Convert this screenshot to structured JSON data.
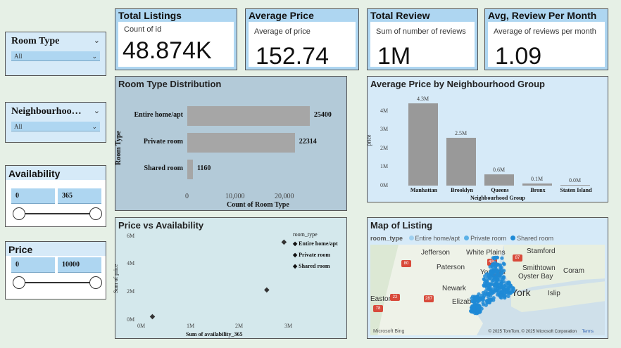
{
  "slicers": {
    "room_type": {
      "title": "Room Type",
      "value": "All"
    },
    "neighbourhood": {
      "title": "Neighbourhoo…",
      "value": "All"
    },
    "availability": {
      "title": "Availability",
      "min": "0",
      "max": "365"
    },
    "price": {
      "title": "Price",
      "min": "0",
      "max": "10000"
    }
  },
  "kpis": {
    "listings": {
      "title": "Total Listings",
      "sub": "Count of id",
      "value": "48.874K"
    },
    "avg_price": {
      "title": "Average Price",
      "sub": "Average of price",
      "value": "152.74"
    },
    "total_review": {
      "title": "Total Review",
      "sub": "Sum of number of reviews",
      "value": "1M"
    },
    "avg_review": {
      "title": "Avg, Review Per Month",
      "sub": "Average of reviews per month",
      "value": "1.09"
    }
  },
  "room_chart": {
    "title": "Room Type Distribution",
    "ylabel": "Room Type",
    "xlabel": "Count of Room Type",
    "ticks": [
      "0",
      "10,000",
      "20,000"
    ]
  },
  "nbhd_chart": {
    "title": "Average Price by Neighbourhood Group",
    "ylabel": "price",
    "xlabel": "Neighbourhood Group",
    "ticks": [
      "0M",
      "1M",
      "2M",
      "3M",
      "4M"
    ]
  },
  "scatter_chart": {
    "title": "Price vs Availability",
    "ylabel": "Sum of price",
    "xlabel": "Sum of availability_365",
    "legend_title": "room_type",
    "xticks": [
      "0M",
      "1M",
      "2M",
      "3M"
    ],
    "yticks": [
      "0M",
      "2M",
      "4M",
      "6M"
    ]
  },
  "map": {
    "title": "Map of Listing",
    "legend_title": "room_type",
    "legend": [
      {
        "label": "Entire home/apt",
        "color": "#9fd0f0"
      },
      {
        "label": "Private room",
        "color": "#5ab0e6"
      },
      {
        "label": "Shared room",
        "color": "#1e8ad6"
      }
    ],
    "places": [
      "Jefferson",
      "White Plains",
      "Stamford",
      "Paterson",
      "Yonkers",
      "Smithtown",
      "Coram",
      "Oyster Bay",
      "Newark",
      "York",
      "Islip",
      "Elizab",
      "Easton"
    ],
    "roads": [
      "80",
      "287",
      "87",
      "495",
      "22",
      "287",
      "78"
    ],
    "copyright": "© 2025 TomTom, © 2025 Microsoft Corporation",
    "terms": "Terms",
    "brand": "Microsoft Bing"
  },
  "chart_data": [
    {
      "type": "bar",
      "orientation": "horizontal",
      "title": "Room Type Distribution",
      "xlabel": "Count of Room Type",
      "ylabel": "Room Type",
      "categories": [
        "Entire home/apt",
        "Private room",
        "Shared room"
      ],
      "values": [
        25400,
        22314,
        1160
      ],
      "xlim": [
        0,
        26000
      ]
    },
    {
      "type": "bar",
      "title": "Average Price by Neighbourhood Group",
      "xlabel": "Neighbourhood Group",
      "ylabel": "price",
      "categories": [
        "Manhattan",
        "Brooklyn",
        "Queens",
        "Bronx",
        "Staten Island"
      ],
      "values": [
        4.3,
        2.5,
        0.6,
        0.1,
        0.0
      ],
      "value_labels": [
        "4.3M",
        "2.5M",
        "0.6M",
        "0.1M",
        "0.0M"
      ],
      "ylim": [
        0,
        4.5
      ]
    },
    {
      "type": "scatter",
      "title": "Price vs Availability",
      "xlabel": "Sum of availability_365",
      "ylabel": "Sum of price",
      "series": [
        {
          "name": "Entire home/apt",
          "x": [
            2.85
          ],
          "y": [
            5.5
          ]
        },
        {
          "name": "Private room",
          "x": [
            2.5
          ],
          "y": [
            2.1
          ]
        },
        {
          "name": "Shared room",
          "x": [
            0.18
          ],
          "y": [
            0.2
          ]
        }
      ],
      "xlim": [
        0,
        3.2
      ],
      "ylim": [
        0,
        6.5
      ]
    }
  ]
}
